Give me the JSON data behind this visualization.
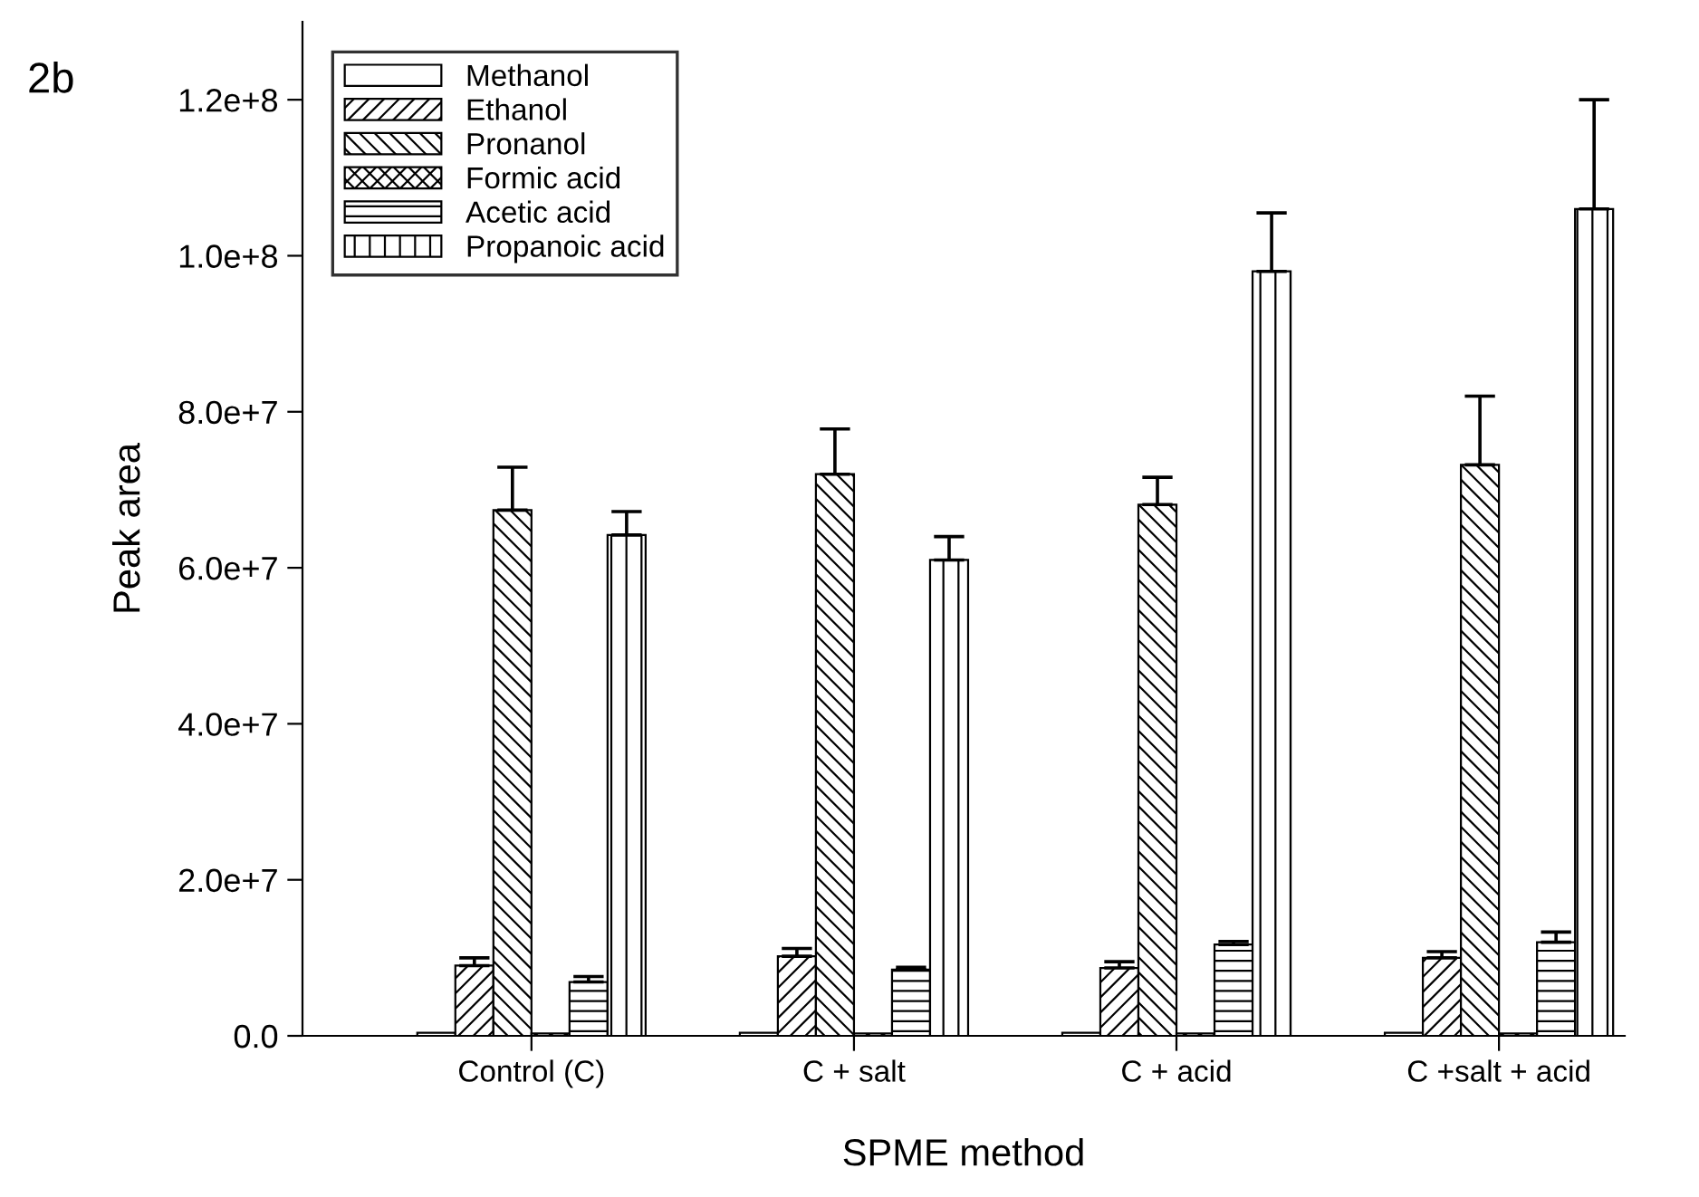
{
  "chart_data": {
    "type": "bar",
    "xlabel": "SPME method",
    "ylabel": "Peak area",
    "categories": [
      "Control (C)",
      "C + salt",
      "C + acid",
      "C +salt + acid"
    ],
    "series": [
      {
        "name": "Methanol",
        "color": "#ffffff",
        "values": [
          400000,
          400000,
          400000,
          400000
        ]
      },
      {
        "name": "Ethanol",
        "color": "#000000",
        "values": [
          9000000,
          10200000,
          8700000,
          10000000
        ],
        "errors": [
          1000000,
          1000000,
          800000,
          800000
        ]
      },
      {
        "name": "Pronanol",
        "color": "#000000",
        "values": [
          67400000,
          72000000,
          68100000,
          73200000
        ],
        "errors": [
          5500000,
          5800000,
          3500000,
          8800000
        ]
      },
      {
        "name": "Formic acid",
        "color": "#000000",
        "values": [
          300000,
          300000,
          300000,
          300000
        ]
      },
      {
        "name": "Acetic acid",
        "color": "#000000",
        "values": [
          6900000,
          8500000,
          11700000,
          12000000
        ],
        "errors": [
          700000,
          300000,
          400000,
          1300000
        ]
      },
      {
        "name": "Propanoic acid",
        "color": "#000000",
        "values": [
          64200000,
          61000000,
          98000000,
          106000000
        ],
        "errors": [
          3000000,
          3000000,
          7500000,
          14000000
        ]
      }
    ],
    "ylim": [
      0,
      130000000
    ],
    "yticks": [
      {
        "value": 0,
        "label": "0.0"
      },
      {
        "value": 20000000,
        "label": "2.0e+7"
      },
      {
        "value": 40000000,
        "label": "4.0e+7"
      },
      {
        "value": 60000000,
        "label": "6.0e+7"
      },
      {
        "value": 80000000,
        "label": "8.0e+7"
      },
      {
        "value": 100000000,
        "label": "1.0e+8"
      },
      {
        "value": 120000000,
        "label": "1.2e+8"
      }
    ],
    "grid": false,
    "legend": "top left",
    "annotations": [
      "2b"
    ]
  }
}
